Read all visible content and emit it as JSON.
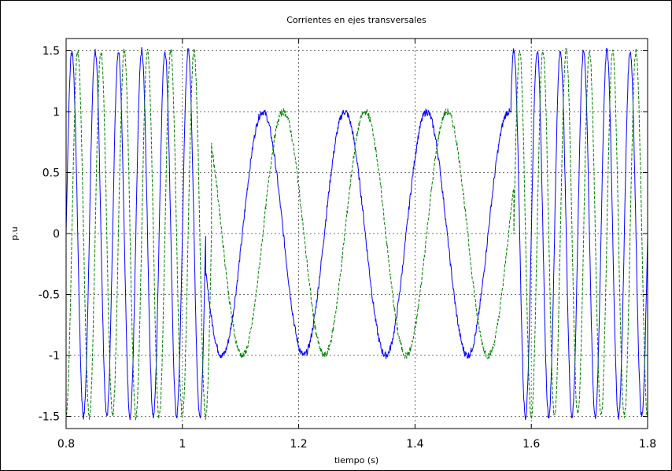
{
  "chart_data": {
    "type": "line",
    "title": "Corrientes en ejes transversales",
    "xlabel": "tiempo (s)",
    "ylabel": "p.u",
    "xlim": [
      0.8,
      1.8
    ],
    "ylim": [
      -1.6,
      1.6
    ],
    "xticks": [
      "0.8",
      "1",
      "1.2",
      "1.4",
      "1.6",
      "1.8"
    ],
    "yticks": [
      "1.5",
      "1",
      "0.5",
      "0",
      "-0.5",
      "-1",
      "-1.5"
    ],
    "grid": true,
    "legend": "none",
    "series": [
      {
        "color": "#0000ff",
        "dash": "solid",
        "segments": [
          {
            "x_start": 0.8,
            "x_end": 1.04,
            "amplitude": 1.5,
            "frequency_hz": 25,
            "phase_rad": 0.0
          },
          {
            "x_start": 1.04,
            "x_end": 1.565,
            "amplitude": 1.0,
            "frequency_hz": 7.1,
            "phase_rad": 1.05
          },
          {
            "x_start": 1.565,
            "x_end": 1.8,
            "amplitude": 1.5,
            "frequency_hz": 25,
            "phase_rad": 0.0
          }
        ]
      },
      {
        "color": "#008000",
        "dash": "dashed",
        "segments": [
          {
            "x_start": 0.8,
            "x_end": 1.05,
            "amplitude": 1.5,
            "frequency_hz": 25,
            "phase_rad": -1.57
          },
          {
            "x_start": 1.05,
            "x_end": 1.57,
            "amplitude": 1.0,
            "frequency_hz": 7.1,
            "phase_rad": -0.52
          },
          {
            "x_start": 1.57,
            "x_end": 1.8,
            "amplitude": 1.5,
            "frequency_hz": 25,
            "phase_rad": -1.57
          }
        ]
      }
    ]
  }
}
